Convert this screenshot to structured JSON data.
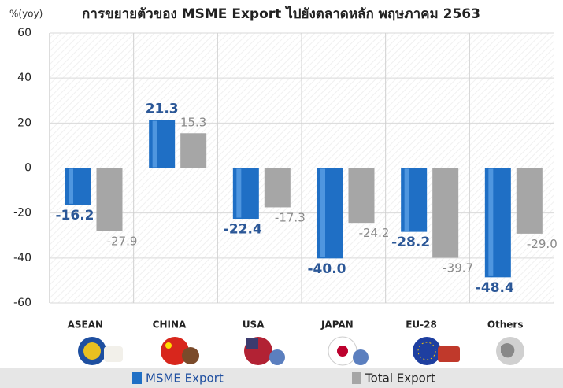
{
  "chart_data": {
    "type": "bar",
    "title": "การขยายตัวของ MSME Export ไปยังตลาดหลัก พฤษภาคม 2563",
    "y_label": "%(yoy)",
    "categories": [
      "ASEAN",
      "CHINA",
      "USA",
      "JAPAN",
      "EU-28",
      "Others"
    ],
    "series": [
      {
        "name": "MSME Export",
        "color": "#1f6fc5",
        "values": [
          -16.2,
          21.3,
          -22.4,
          -40.0,
          -28.2,
          -48.4
        ]
      },
      {
        "name": "Total Export",
        "color": "#a6a6a6",
        "values": [
          -27.9,
          15.3,
          -17.3,
          -24.2,
          -39.7,
          -29.0
        ]
      }
    ],
    "value_labels": [
      [
        "-16.2",
        "21.3",
        "-22.4",
        "-40.0",
        "-28.2",
        "-48.4"
      ],
      [
        "-27.9",
        "15.3",
        "-17.3",
        "-24.2",
        "-39.7",
        "-29.0"
      ]
    ],
    "ylim": [
      -60,
      60
    ],
    "yticks": [
      -60,
      -40,
      -20,
      0,
      20,
      40,
      60
    ],
    "grid": true
  }
}
